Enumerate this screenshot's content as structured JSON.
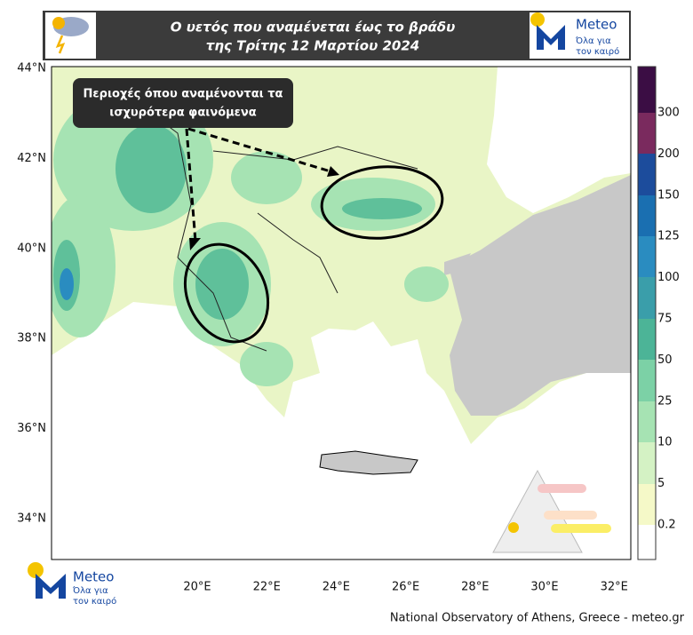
{
  "header": {
    "title_lines": [
      "Ο υετός που αναμένεται έως το βράδυ",
      "της Τρίτης 12 Μαρτίου 2024"
    ]
  },
  "logo": {
    "name": "Meteo",
    "tagline_lines": [
      "Όλα για",
      "τον καιρό"
    ]
  },
  "annotation": {
    "lines": [
      "Περιοχές όπου αναμένονται τα",
      "ισχυρότερα φαινόμενα"
    ]
  },
  "map": {
    "lat_labels": [
      "44°N",
      "42°N",
      "40°N",
      "38°N",
      "36°N",
      "34°N"
    ],
    "lon_labels": [
      "20°E",
      "22°E",
      "24°E",
      "26°E",
      "28°E",
      "30°E",
      "32°E"
    ]
  },
  "colorbar": {
    "labels": [
      0.2,
      5,
      10,
      25,
      50,
      75,
      100,
      125,
      150,
      200,
      300
    ]
  },
  "footer": "National Observatory of Athens, Greece - meteo.gr"
}
